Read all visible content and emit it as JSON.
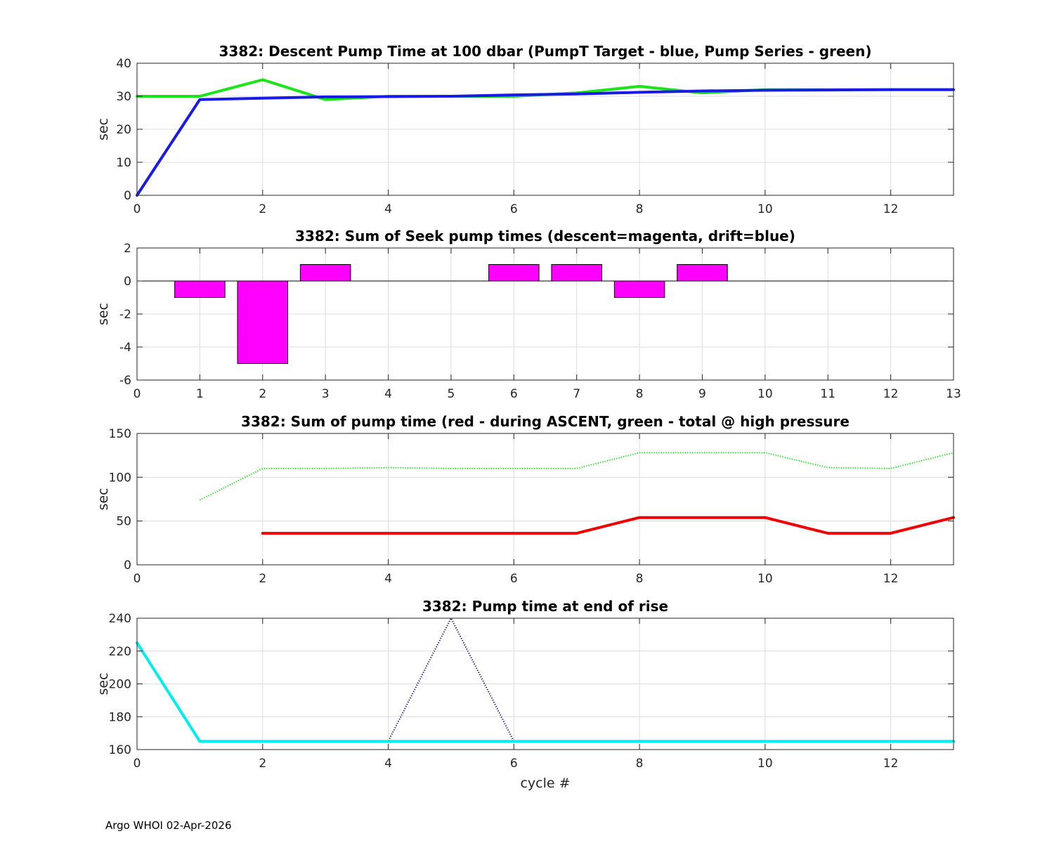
{
  "footer": "Argo WHOI 02-Apr-2026",
  "chart_data": [
    {
      "type": "line",
      "title": "3382: Descent Pump Time at 100 dbar (PumpT Target - blue, Pump Series - green)",
      "xlabel": "",
      "ylabel": "sec",
      "xlim": [
        0,
        13
      ],
      "ylim": [
        0,
        40
      ],
      "xticks": [
        0,
        2,
        4,
        6,
        8,
        10,
        12
      ],
      "yticks": [
        0,
        10,
        20,
        30,
        40
      ],
      "grid": true,
      "series": [
        {
          "name": "Pump Series",
          "color": "#19e619",
          "style": "solid",
          "width": 4,
          "x": [
            0,
            1,
            2,
            3,
            4,
            5,
            6,
            7,
            8,
            9,
            10,
            11,
            12,
            13
          ],
          "y": [
            30,
            30,
            35,
            29,
            30,
            30,
            30,
            31,
            33,
            31,
            32,
            32,
            32,
            32
          ]
        },
        {
          "name": "PumpT Target",
          "color": "#1a1ae6",
          "style": "solid",
          "width": 4,
          "x": [
            0,
            1,
            2,
            3,
            4,
            5,
            6,
            7,
            8,
            9,
            10,
            11,
            12,
            13
          ],
          "y": [
            0,
            29,
            29.4,
            29.8,
            29.9,
            30,
            30.4,
            30.7,
            31.2,
            31.6,
            31.8,
            31.9,
            32,
            32
          ]
        }
      ]
    },
    {
      "type": "bar",
      "title": "3382: Sum of Seek pump times (descent=magenta, drift=blue)",
      "xlabel": "",
      "ylabel": "sec",
      "xlim": [
        0,
        13
      ],
      "ylim": [
        -6,
        2
      ],
      "xticks": [
        0,
        1,
        2,
        3,
        4,
        5,
        6,
        7,
        8,
        9,
        10,
        11,
        12,
        13
      ],
      "yticks": [
        -6,
        -4,
        -2,
        0,
        2
      ],
      "grid": true,
      "bar_width": 0.8,
      "series": [
        {
          "name": "descent",
          "color": "#ff00ff",
          "x": [
            1,
            2,
            3,
            6,
            7,
            8,
            9
          ],
          "y": [
            -1,
            -5,
            1,
            1,
            1,
            -1,
            1
          ]
        }
      ]
    },
    {
      "type": "line",
      "title": "3382: Sum of pump time (red - during ASCENT, green - total @ high pressure",
      "xlabel": "",
      "ylabel": "sec",
      "xlim": [
        0,
        13
      ],
      "ylim": [
        0,
        150
      ],
      "xticks": [
        0,
        2,
        4,
        6,
        8,
        10,
        12
      ],
      "yticks": [
        0,
        50,
        100,
        150
      ],
      "grid": true,
      "series": [
        {
          "name": "total @ high pressure",
          "color": "#00ee00",
          "style": "dotted",
          "width": 2,
          "x": [
            1,
            2,
            3,
            4,
            5,
            6,
            7,
            8,
            9,
            10,
            11,
            12,
            13
          ],
          "y": [
            74,
            110,
            110,
            111,
            110,
            110,
            110,
            128,
            128,
            128,
            111,
            110,
            128
          ]
        },
        {
          "name": "during ASCENT",
          "color": "#ee0000",
          "style": "solid",
          "width": 4,
          "x": [
            2,
            3,
            4,
            5,
            6,
            7,
            8,
            9,
            10,
            11,
            12,
            13
          ],
          "y": [
            36,
            36,
            36,
            36,
            36,
            36,
            54,
            54,
            54,
            36,
            36,
            54
          ]
        }
      ]
    },
    {
      "type": "line",
      "title": "3382: Pump time at end of rise",
      "xlabel": "cycle #",
      "ylabel": "sec",
      "xlim": [
        0,
        13
      ],
      "ylim": [
        160,
        240
      ],
      "xticks": [
        0,
        2,
        4,
        6,
        8,
        10,
        12
      ],
      "yticks": [
        160,
        180,
        200,
        220,
        240
      ],
      "grid": true,
      "series": [
        {
          "name": "dotted",
          "color": "#000080",
          "style": "dotted",
          "width": 2,
          "x": [
            0,
            1,
            2,
            3,
            4,
            5,
            6,
            7,
            8,
            9,
            10,
            11,
            12,
            13
          ],
          "y": [
            225,
            165,
            165,
            165,
            165,
            240,
            165,
            165,
            165,
            165,
            165,
            165,
            165,
            165
          ]
        },
        {
          "name": "solid",
          "color": "#00eeee",
          "style": "solid",
          "width": 4,
          "x": [
            0,
            1,
            2,
            3,
            4,
            5,
            6,
            7,
            8,
            9,
            10,
            11,
            12,
            13
          ],
          "y": [
            225,
            165,
            165,
            165,
            165,
            165,
            165,
            165,
            165,
            165,
            165,
            165,
            165,
            165
          ]
        }
      ]
    }
  ]
}
